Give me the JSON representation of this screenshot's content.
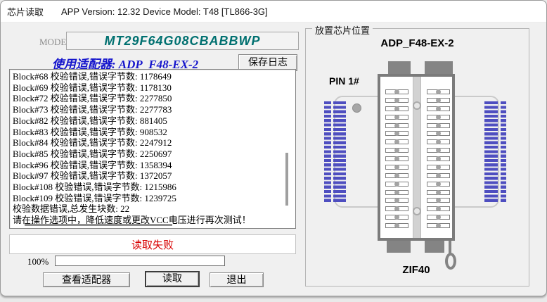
{
  "window": {
    "title": "芯片读取",
    "app_info": "APP Version: 12.32 Device Model: T48 [TL866-3G]"
  },
  "reader": {
    "model_label": "MODEL:",
    "model_value": "MT29F64G08CBABBWP",
    "adapter_line": "使用适配器: ADP_F48-EX-2",
    "save_log_button": "保存日志",
    "log_lines": [
      "Block#68 校验错误,错误字节数: 1178649",
      "Block#69 校验错误,错误字节数: 1178130",
      "Block#72 校验错误,错误字节数: 2277850",
      "Block#73 校验错误,错误字节数: 2277783",
      "Block#82 校验错误,错误字节数: 881405",
      "Block#83 校验错误,错误字节数: 908532",
      "Block#84 校验错误,错误字节数: 2247912",
      "Block#85 校验错误,错误字节数: 2250697",
      "Block#96 校验错误,错误字节数: 1358394",
      "Block#97 校验错误,错误字节数: 1372057",
      "Block#108 校验错误,错误字节数: 1215986",
      "Block#109 校验错误,错误字节数: 1239725",
      "校验数据错误,总发生块数: 22",
      "请在操作选项中，降低速度或更改VCC电压进行再次测试！"
    ],
    "status_text": "读取失败",
    "progress_percent": "100%",
    "view_adapter_button": "查看适配器",
    "read_button": "读取",
    "exit_button": "退出"
  },
  "placement": {
    "group_title": "放置芯片位置",
    "adapter_name": "ADP_F48-EX-2",
    "pin1_label": "PIN 1#",
    "socket_label": "ZIF40"
  },
  "colors": {
    "model_text": "#007070",
    "adapter_text": "#1414cc",
    "status_text": "#d80000",
    "pin_strip_blue": "#4e4ec0"
  }
}
